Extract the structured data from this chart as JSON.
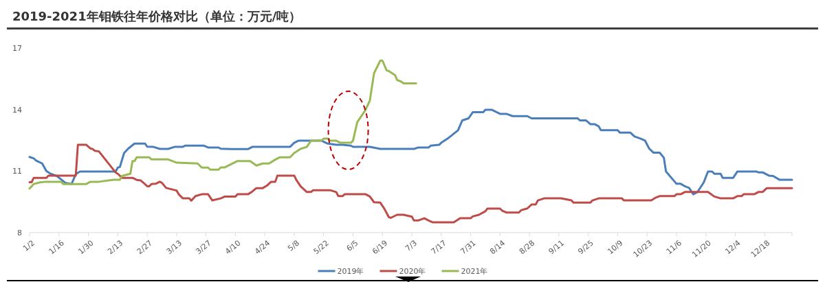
{
  "chart_data": {
    "type": "line",
    "title": "2019-2021年钼铁往年价格对比（单位：万元/吨）",
    "xlim": [
      "--01-02",
      "--12-31"
    ],
    "xticks": [
      {
        "value": "--01-02",
        "label": "1/2"
      },
      {
        "value": "--01-16",
        "label": "1/16"
      },
      {
        "value": "--01-30",
        "label": "1/30"
      },
      {
        "value": "--02-13",
        "label": "2/13"
      },
      {
        "value": "--02-27",
        "label": "2/27"
      },
      {
        "value": "--03-13",
        "label": "3/13"
      },
      {
        "value": "--03-27",
        "label": "3/27"
      },
      {
        "value": "--04-10",
        "label": "4/10"
      },
      {
        "value": "--04-24",
        "label": "4/24"
      },
      {
        "value": "--05-08",
        "label": "5/8"
      },
      {
        "value": "--05-22",
        "label": "5/22"
      },
      {
        "value": "--06-05",
        "label": "6/5"
      },
      {
        "value": "--06-19",
        "label": "6/19"
      },
      {
        "value": "--07-03",
        "label": "7/3"
      },
      {
        "value": "--07-17",
        "label": "7/17"
      },
      {
        "value": "--07-31",
        "label": "7/31"
      },
      {
        "value": "--08-14",
        "label": "8/14"
      },
      {
        "value": "--08-28",
        "label": "8/28"
      },
      {
        "value": "--09-11",
        "label": "9/11"
      },
      {
        "value": "--09-25",
        "label": "9/25"
      },
      {
        "value": "--10-09",
        "label": "10/9"
      },
      {
        "value": "--10-23",
        "label": "10/23"
      },
      {
        "value": "--11-06",
        "label": "11/6"
      },
      {
        "value": "--11-20",
        "label": "11/20"
      },
      {
        "value": "--12-04",
        "label": "12/4"
      },
      {
        "value": "--12-18",
        "label": "12/18"
      },
      {
        "value": "--12-31",
        "label": null
      }
    ],
    "ylim": [
      8,
      17
    ],
    "yticks": [
      8,
      11,
      14,
      17
    ],
    "legend": "bottom",
    "series": [
      {
        "name": "2019年",
        "color": "#4a7ebb",
        "x": [
          "--01-02",
          "--01-04",
          "--01-05",
          "--01-08",
          "--01-10",
          "--01-12",
          "--01-15",
          "--01-19",
          "--01-22",
          "--01-24",
          "--01-26",
          "--02-12",
          "--02-13",
          "--02-14",
          "--02-16",
          "--02-18",
          "--02-21",
          "--02-26",
          "--02-27",
          "--03-02",
          "--03-05",
          "--03-09",
          "--03-12",
          "--03-16",
          "--03-17",
          "--03-26",
          "--03-28",
          "--04-02",
          "--04-03",
          "--04-08",
          "--04-16",
          "--04-18",
          "--05-06",
          "--05-08",
          "--05-10",
          "--05-21",
          "--05-24",
          "--05-28",
          "--05-31",
          "--06-04",
          "--06-05",
          "--06-13",
          "--06-18",
          "--07-04",
          "--07-06",
          "--07-11",
          "--07-12",
          "--07-16",
          "--07-17",
          "--07-20",
          "--07-25",
          "--07-27",
          "--07-30",
          "--08-01",
          "--08-06",
          "--08-07",
          "--08-10",
          "--08-14",
          "--08-17",
          "--08-20",
          "--08-27",
          "--08-29",
          "--09-20",
          "--09-21",
          "--09-24",
          "--09-26",
          "--09-28",
          "--09-30",
          "--10-01",
          "--10-09",
          "--10-10",
          "--10-15",
          "--10-17",
          "--10-20",
          "--10-22",
          "--10-24",
          "--10-26",
          "--10-29",
          "--10-31",
          "--11-01",
          "--11-06",
          "--11-08",
          "--11-10",
          "--11-12",
          "--11-14",
          "--11-16",
          "--11-19",
          "--11-21",
          "--11-23",
          "--11-24",
          "--11-27",
          "--11-28",
          "--12-03",
          "--12-05",
          "--12-14",
          "--12-15",
          "--12-17",
          "--12-20",
          "--12-22",
          "--12-25",
          "--12-31"
        ],
        "values": [
          11.69,
          11.62,
          11.52,
          11.37,
          11.0,
          10.87,
          10.76,
          10.43,
          10.37,
          10.85,
          10.98,
          10.98,
          11.17,
          11.2,
          11.88,
          12.1,
          12.34,
          12.34,
          12.19,
          12.18,
          12.08,
          12.08,
          12.18,
          12.18,
          12.24,
          12.24,
          12.15,
          12.15,
          12.09,
          12.07,
          12.07,
          12.18,
          12.18,
          12.38,
          12.48,
          12.48,
          12.34,
          12.28,
          12.28,
          12.24,
          12.18,
          12.18,
          12.08,
          12.08,
          12.15,
          12.15,
          12.24,
          12.28,
          12.38,
          12.58,
          12.99,
          13.47,
          13.57,
          13.87,
          13.87,
          13.99,
          13.99,
          13.79,
          13.79,
          13.68,
          13.68,
          13.57,
          13.57,
          13.47,
          13.47,
          13.29,
          13.29,
          13.18,
          12.99,
          12.99,
          12.88,
          12.88,
          12.69,
          12.58,
          12.49,
          12.1,
          11.9,
          11.9,
          11.65,
          10.98,
          10.38,
          10.38,
          10.26,
          10.18,
          9.87,
          9.98,
          10.45,
          10.98,
          10.98,
          10.87,
          10.87,
          10.67,
          10.67,
          10.98,
          10.98,
          10.94,
          10.94,
          10.78,
          10.76,
          10.58,
          10.58
        ]
      },
      {
        "name": "2020年",
        "color": "#be4b48",
        "x": [
          "--01-02",
          "--01-03",
          "--01-04",
          "--01-10",
          "--01-11",
          "--01-24",
          "--01-25",
          "--01-29",
          "--01-31",
          "--02-01",
          "--02-02",
          "--02-04",
          "--02-12",
          "--02-13",
          "--02-15",
          "--02-20",
          "--02-22",
          "--02-24",
          "--02-25",
          "--02-27",
          "--02-28",
          "--03-01",
          "--03-03",
          "--03-05",
          "--03-06",
          "--03-08",
          "--03-13",
          "--03-14",
          "--03-16",
          "--03-19",
          "--03-20",
          "--03-22",
          "--03-25",
          "--03-28",
          "--03-30",
          "--04-03",
          "--04-05",
          "--04-10",
          "--04-11",
          "--04-16",
          "--04-18",
          "--04-20",
          "--04-23",
          "--04-25",
          "--04-27",
          "--04-29",
          "--04-30",
          "--05-08",
          "--05-09",
          "--05-11",
          "--05-14",
          "--05-16",
          "--05-17",
          "--05-25",
          "--05-28",
          "--05-29",
          "--05-31",
          "--06-01",
          "--06-11",
          "--06-13",
          "--06-15",
          "--06-18",
          "--06-20",
          "--06-22",
          "--06-23",
          "--06-26",
          "--06-29",
          "--07-03",
          "--07-04",
          "--07-06",
          "--07-09",
          "--07-11",
          "--07-13",
          "--07-23",
          "--07-26",
          "--07-31",
          "--08-01",
          "--08-04",
          "--08-07",
          "--08-08",
          "--08-14",
          "--08-15",
          "--08-17",
          "--08-23",
          "--08-24",
          "--08-27",
          "--08-29",
          "--08-31",
          "--09-01",
          "--09-04",
          "--09-12",
          "--09-17",
          "--09-18",
          "--09-26",
          "--09-27",
          "--09-30",
          "--10-11",
          "--10-12",
          "--10-25",
          "--10-27",
          "--10-29",
          "--11-05",
          "--11-06",
          "--11-08",
          "--11-10",
          "--11-21",
          "--11-24",
          "--11-27",
          "--12-03",
          "--12-05",
          "--12-07",
          "--12-08",
          "--12-13",
          "--12-15",
          "--12-17",
          "--12-19",
          "--12-31"
        ],
        "values": [
          10.46,
          10.46,
          10.67,
          10.67,
          10.78,
          10.78,
          12.28,
          12.28,
          12.1,
          12.08,
          11.99,
          11.96,
          10.93,
          10.87,
          10.67,
          10.67,
          10.57,
          10.54,
          10.45,
          10.26,
          10.26,
          10.37,
          10.38,
          10.48,
          10.43,
          10.18,
          10.05,
          9.87,
          9.67,
          9.67,
          9.56,
          9.78,
          9.87,
          9.87,
          9.57,
          9.67,
          9.76,
          9.76,
          9.87,
          9.87,
          10.0,
          10.17,
          10.17,
          10.29,
          10.48,
          10.48,
          10.78,
          10.78,
          10.57,
          10.26,
          9.98,
          9.98,
          10.07,
          10.07,
          9.98,
          9.78,
          9.78,
          9.87,
          9.87,
          9.76,
          9.48,
          9.46,
          9.15,
          8.76,
          8.72,
          8.87,
          8.87,
          8.78,
          8.59,
          8.59,
          8.7,
          8.59,
          8.5,
          8.5,
          8.7,
          8.7,
          8.79,
          8.87,
          9.04,
          9.17,
          9.17,
          9.07,
          8.98,
          8.98,
          9.09,
          9.18,
          9.37,
          9.37,
          9.57,
          9.67,
          9.67,
          9.57,
          9.46,
          9.46,
          9.57,
          9.67,
          9.67,
          9.57,
          9.57,
          9.7,
          9.78,
          9.78,
          9.87,
          9.87,
          9.98,
          9.98,
          9.76,
          9.67,
          9.67,
          9.78,
          9.78,
          9.87,
          9.87,
          9.98,
          9.98,
          10.17,
          10.17
        ]
      },
      {
        "name": "2021年",
        "color": "#98b954",
        "x": [
          "--01-02",
          "--01-04",
          "--01-07",
          "--01-10",
          "--01-17",
          "--01-18",
          "--01-29",
          "--01-31",
          "--02-04",
          "--02-11",
          "--02-14",
          "--02-15",
          "--02-19",
          "--02-20",
          "--02-21",
          "--02-22",
          "--02-28",
          "--03-01",
          "--03-09",
          "--03-13",
          "--03-23",
          "--03-25",
          "--03-28",
          "--03-29",
          "--04-02",
          "--04-03",
          "--04-05",
          "--04-11",
          "--04-17",
          "--04-20",
          "--04-23",
          "--04-26",
          "--04-29",
          "--05-01",
          "--05-06",
          "--05-08",
          "--05-11",
          "--05-14",
          "--05-16",
          "--05-21",
          "--05-22",
          "--05-24",
          "--05-25",
          "--05-28",
          "--05-30",
          "--06-04",
          "--06-05",
          "--06-07",
          "--06-11",
          "--06-13",
          "--06-15",
          "--06-18",
          "--06-19",
          "--06-21",
          "--06-22",
          "--06-25",
          "--06-26",
          "--06-28",
          "--06-29",
          "--07-05"
        ],
        "values": [
          10.15,
          10.37,
          10.45,
          10.48,
          10.48,
          10.37,
          10.37,
          10.48,
          10.48,
          10.58,
          10.58,
          10.76,
          10.87,
          11.49,
          11.49,
          11.67,
          11.67,
          11.57,
          11.57,
          11.41,
          11.37,
          11.17,
          11.17,
          11.07,
          11.07,
          11.18,
          11.18,
          11.49,
          11.49,
          11.27,
          11.37,
          11.37,
          11.56,
          11.67,
          11.67,
          11.88,
          12.08,
          12.18,
          12.48,
          12.48,
          12.58,
          12.58,
          12.48,
          12.48,
          12.38,
          12.38,
          12.48,
          13.38,
          13.99,
          14.44,
          15.77,
          16.39,
          16.39,
          15.91,
          15.88,
          15.68,
          15.44,
          15.36,
          15.28,
          15.28
        ]
      }
    ]
  }
}
